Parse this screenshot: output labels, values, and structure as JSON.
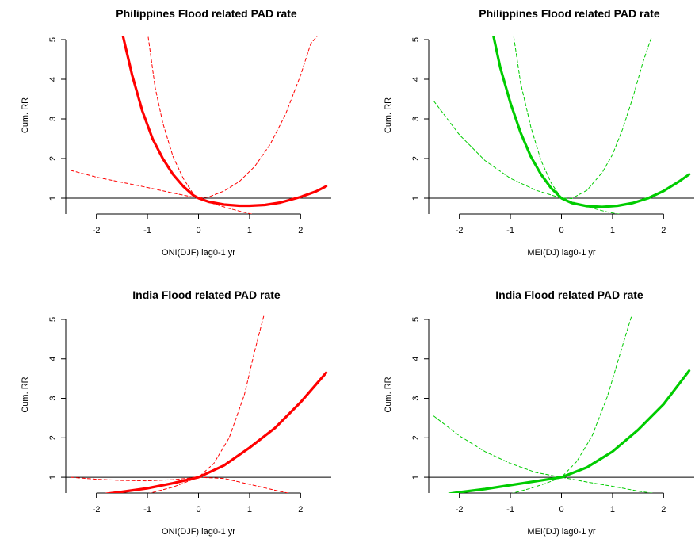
{
  "chart_data": [
    {
      "type": "line",
      "title": "Philippines Flood related PAD rate",
      "xlabel": "ONI(DJF) lag0-1 yr",
      "ylabel": "Cum. RR",
      "xlim": [
        -2.6,
        2.6
      ],
      "ylim": [
        0.6,
        5.1
      ],
      "xticks": [
        -2,
        -1,
        0,
        1,
        2
      ],
      "yticks": [
        1,
        2,
        3,
        4,
        5
      ],
      "reference_line": 1,
      "color": "#ff0000",
      "series": [
        {
          "kind": "estimate",
          "x": [
            -1.5,
            -1.3,
            -1.1,
            -0.9,
            -0.7,
            -0.5,
            -0.3,
            -0.1,
            0,
            0.2,
            0.5,
            0.8,
            1.0,
            1.3,
            1.6,
            2.0,
            2.3,
            2.5
          ],
          "y": [
            5.2,
            4.1,
            3.2,
            2.5,
            2.0,
            1.6,
            1.3,
            1.07,
            1.0,
            0.91,
            0.84,
            0.81,
            0.81,
            0.83,
            0.89,
            1.03,
            1.17,
            1.3
          ]
        },
        {
          "kind": "upper",
          "x": [
            -1.0,
            -0.85,
            -0.7,
            -0.5,
            -0.3,
            -0.1,
            0,
            0.2,
            0.5,
            0.8,
            1.1,
            1.4,
            1.7,
            2.0,
            2.2,
            2.4
          ],
          "y": [
            5.2,
            3.8,
            2.9,
            2.05,
            1.5,
            1.1,
            1.0,
            1.03,
            1.18,
            1.42,
            1.8,
            2.35,
            3.1,
            4.1,
            4.9,
            5.2
          ]
        },
        {
          "kind": "lower",
          "x": [
            -2.5,
            -2.0,
            -1.5,
            -1.0,
            -0.5,
            0,
            0.3,
            0.6,
            0.9,
            1.1
          ],
          "y": [
            1.7,
            1.53,
            1.4,
            1.27,
            1.13,
            1.0,
            0.86,
            0.74,
            0.64,
            0.58
          ]
        }
      ]
    },
    {
      "type": "line",
      "title": "Philippines Flood related PAD rate",
      "xlabel": "MEI(DJ) lag0-1 yr",
      "ylabel": "Cum. RR",
      "xlim": [
        -2.6,
        2.6
      ],
      "ylim": [
        0.6,
        5.1
      ],
      "xticks": [
        -2,
        -1,
        0,
        1,
        2
      ],
      "yticks": [
        1,
        2,
        3,
        4,
        5
      ],
      "reference_line": 1,
      "color": "#00cc00",
      "series": [
        {
          "kind": "estimate",
          "x": [
            -1.35,
            -1.2,
            -1.0,
            -0.8,
            -0.6,
            -0.4,
            -0.2,
            0,
            0.2,
            0.5,
            0.8,
            1.1,
            1.4,
            1.7,
            2.0,
            2.3,
            2.5
          ],
          "y": [
            5.2,
            4.3,
            3.4,
            2.65,
            2.05,
            1.6,
            1.25,
            1.0,
            0.88,
            0.8,
            0.78,
            0.81,
            0.88,
            1.0,
            1.18,
            1.42,
            1.6
          ]
        },
        {
          "kind": "upper",
          "x": [
            -0.95,
            -0.8,
            -0.6,
            -0.4,
            -0.2,
            0,
            0.2,
            0.5,
            0.8,
            1.0,
            1.2,
            1.4,
            1.6,
            1.8
          ],
          "y": [
            5.2,
            3.9,
            2.8,
            1.95,
            1.38,
            1.0,
            0.99,
            1.2,
            1.65,
            2.1,
            2.75,
            3.55,
            4.45,
            5.2
          ]
        },
        {
          "kind": "lower",
          "x": [
            -2.5,
            -2.0,
            -1.5,
            -1.0,
            -0.5,
            0,
            0.3,
            0.6,
            0.9,
            1.2
          ],
          "y": [
            3.45,
            2.6,
            1.95,
            1.5,
            1.2,
            1.0,
            0.87,
            0.75,
            0.65,
            0.58
          ]
        }
      ]
    },
    {
      "type": "line",
      "title": "India Flood related PAD rate",
      "xlabel": "ONI(DJF) lag0-1 yr",
      "ylabel": "Cum. RR",
      "xlim": [
        -2.6,
        2.6
      ],
      "ylim": [
        0.6,
        5.1
      ],
      "xticks": [
        -2,
        -1,
        0,
        1,
        2
      ],
      "yticks": [
        1,
        2,
        3,
        4,
        5
      ],
      "reference_line": 1,
      "color": "#ff0000",
      "series": [
        {
          "kind": "estimate",
          "x": [
            -1.8,
            -1.5,
            -1.0,
            -0.5,
            0,
            0.5,
            1.0,
            1.5,
            2.0,
            2.5
          ],
          "y": [
            0.58,
            0.63,
            0.72,
            0.85,
            1.0,
            1.3,
            1.75,
            2.25,
            2.9,
            3.65
          ]
        },
        {
          "kind": "upper",
          "x": [
            -1.0,
            -0.5,
            0,
            0.3,
            0.6,
            0.9,
            1.1,
            1.3
          ],
          "y": [
            0.58,
            0.75,
            1.0,
            1.35,
            2.0,
            3.1,
            4.2,
            5.2
          ]
        },
        {
          "kind": "lower",
          "x": [
            -2.5,
            -2.0,
            -1.5,
            -1.0,
            -0.5,
            0,
            0.5,
            1.0,
            1.5,
            2.0,
            2.5
          ],
          "y": [
            1.0,
            0.95,
            0.92,
            0.91,
            0.94,
            1.0,
            0.97,
            0.82,
            0.67,
            0.53,
            0.43
          ]
        }
      ]
    },
    {
      "type": "line",
      "title": "India Flood related PAD rate",
      "xlabel": "MEI(DJ) lag0-1 yr",
      "ylabel": "Cum. RR",
      "xlim": [
        -2.6,
        2.6
      ],
      "ylim": [
        0.6,
        5.1
      ],
      "xticks": [
        -2,
        -1,
        0,
        1,
        2
      ],
      "yticks": [
        1,
        2,
        3,
        4,
        5
      ],
      "reference_line": 1,
      "color": "#00cc00",
      "series": [
        {
          "kind": "estimate",
          "x": [
            -2.2,
            -2.0,
            -1.5,
            -1.0,
            -0.5,
            0,
            0.5,
            1.0,
            1.5,
            2.0,
            2.5
          ],
          "y": [
            0.58,
            0.62,
            0.7,
            0.8,
            0.9,
            1.0,
            1.25,
            1.65,
            2.2,
            2.85,
            3.7
          ]
        },
        {
          "kind": "upper",
          "x": [
            -1.0,
            -0.6,
            -0.3,
            0,
            0.3,
            0.6,
            0.9,
            1.2,
            1.4
          ],
          "y": [
            0.58,
            0.72,
            0.85,
            1.0,
            1.4,
            2.05,
            3.05,
            4.35,
            5.2
          ]
        },
        {
          "kind": "lower",
          "x": [
            -2.5,
            -2.0,
            -1.5,
            -1.0,
            -0.5,
            0,
            0.5,
            1.0,
            1.5,
            2.0,
            2.5
          ],
          "y": [
            2.55,
            2.05,
            1.65,
            1.35,
            1.12,
            1.0,
            0.88,
            0.77,
            0.65,
            0.55,
            0.47
          ]
        }
      ]
    }
  ]
}
